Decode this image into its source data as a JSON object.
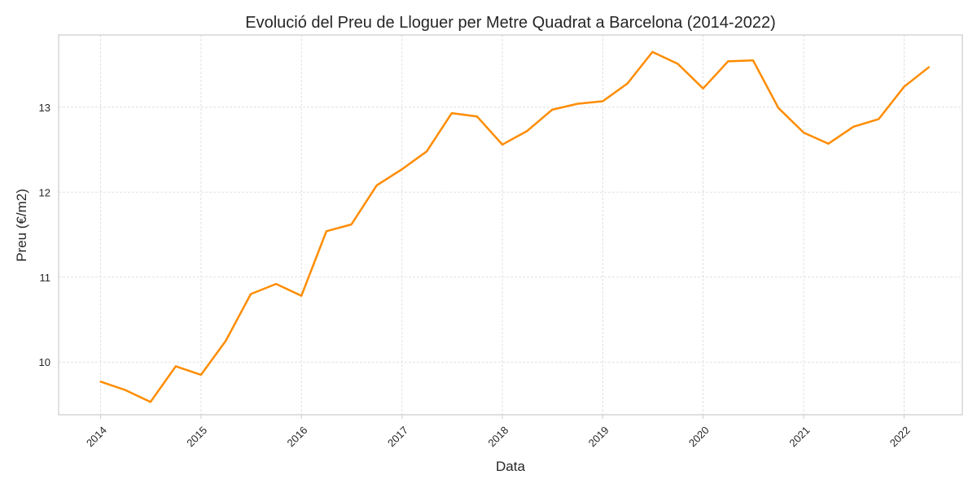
{
  "chart_data": {
    "type": "line",
    "title": "Evolució del Preu de Lloguer per Metre Quadrat a Barcelona (2014-2022)",
    "xlabel": "Data",
    "ylabel": "Preu (€/m2)",
    "x_ticks": [
      "2014",
      "2015",
      "2016",
      "2017",
      "2018",
      "2019",
      "2020",
      "2021",
      "2022"
    ],
    "y_ticks": [
      "10",
      "11",
      "12",
      "13"
    ],
    "ylim": [
      9.38,
      13.85
    ],
    "xlim": [
      "2013-08-01",
      "2022-08-01"
    ],
    "grid": true,
    "line_color": "#ff8c00",
    "series": [
      {
        "x": [
          "2014-01-01",
          "2014-04-01",
          "2014-07-01",
          "2014-10-01",
          "2015-01-01",
          "2015-04-01",
          "2015-07-01",
          "2015-10-01",
          "2016-01-01",
          "2016-04-01",
          "2016-07-01",
          "2016-10-01",
          "2017-01-01",
          "2017-04-01",
          "2017-07-01",
          "2017-10-01",
          "2018-01-01",
          "2018-04-01",
          "2018-07-01",
          "2018-10-01",
          "2019-01-01",
          "2019-04-01",
          "2019-07-01",
          "2019-10-01",
          "2020-01-01",
          "2020-04-01",
          "2020-07-01",
          "2020-10-01",
          "2021-01-01",
          "2021-04-01",
          "2021-07-01",
          "2021-10-01",
          "2022-01-01",
          "2022-04-01"
        ],
        "values": [
          9.77,
          9.67,
          9.53,
          9.95,
          9.85,
          10.25,
          10.8,
          10.92,
          10.78,
          11.54,
          11.62,
          12.08,
          12.27,
          12.48,
          12.93,
          12.89,
          12.56,
          12.72,
          12.97,
          13.04,
          13.07,
          13.28,
          13.65,
          13.51,
          13.22,
          13.54,
          13.55,
          12.99,
          12.7,
          12.57,
          12.77,
          12.86,
          13.24,
          13.47
        ]
      }
    ]
  }
}
